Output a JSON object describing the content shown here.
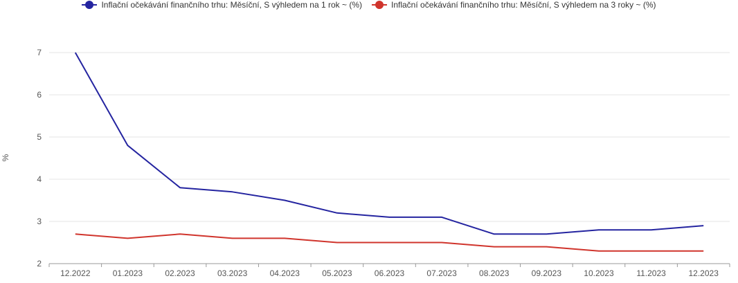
{
  "chart_data": {
    "type": "line",
    "categories": [
      "12.2022",
      "01.2023",
      "02.2023",
      "03.2023",
      "04.2023",
      "05.2023",
      "06.2023",
      "07.2023",
      "08.2023",
      "09.2023",
      "10.2023",
      "11.2023",
      "12.2023"
    ],
    "series": [
      {
        "name": "Inflační očekávání finančního trhu: Měsíční, S výhledem na 1 rok ~ (%)",
        "color": "#2424a0",
        "values": [
          7.0,
          4.8,
          3.8,
          3.7,
          3.5,
          3.2,
          3.1,
          3.1,
          2.7,
          2.7,
          2.8,
          2.8,
          2.9
        ]
      },
      {
        "name": "Inflační očekávání finančního trhu: Měsíční, S výhledem na 3 roky ~ (%)",
        "color": "#d0342c",
        "values": [
          2.7,
          2.6,
          2.7,
          2.6,
          2.6,
          2.5,
          2.5,
          2.5,
          2.4,
          2.4,
          2.3,
          2.3,
          2.3
        ]
      }
    ],
    "ylabel": "%",
    "ylim": [
      2,
      7
    ],
    "yticks": [
      "2",
      "3",
      "4",
      "5",
      "6",
      "7"
    ],
    "grid": true,
    "legend": "top-center"
  }
}
